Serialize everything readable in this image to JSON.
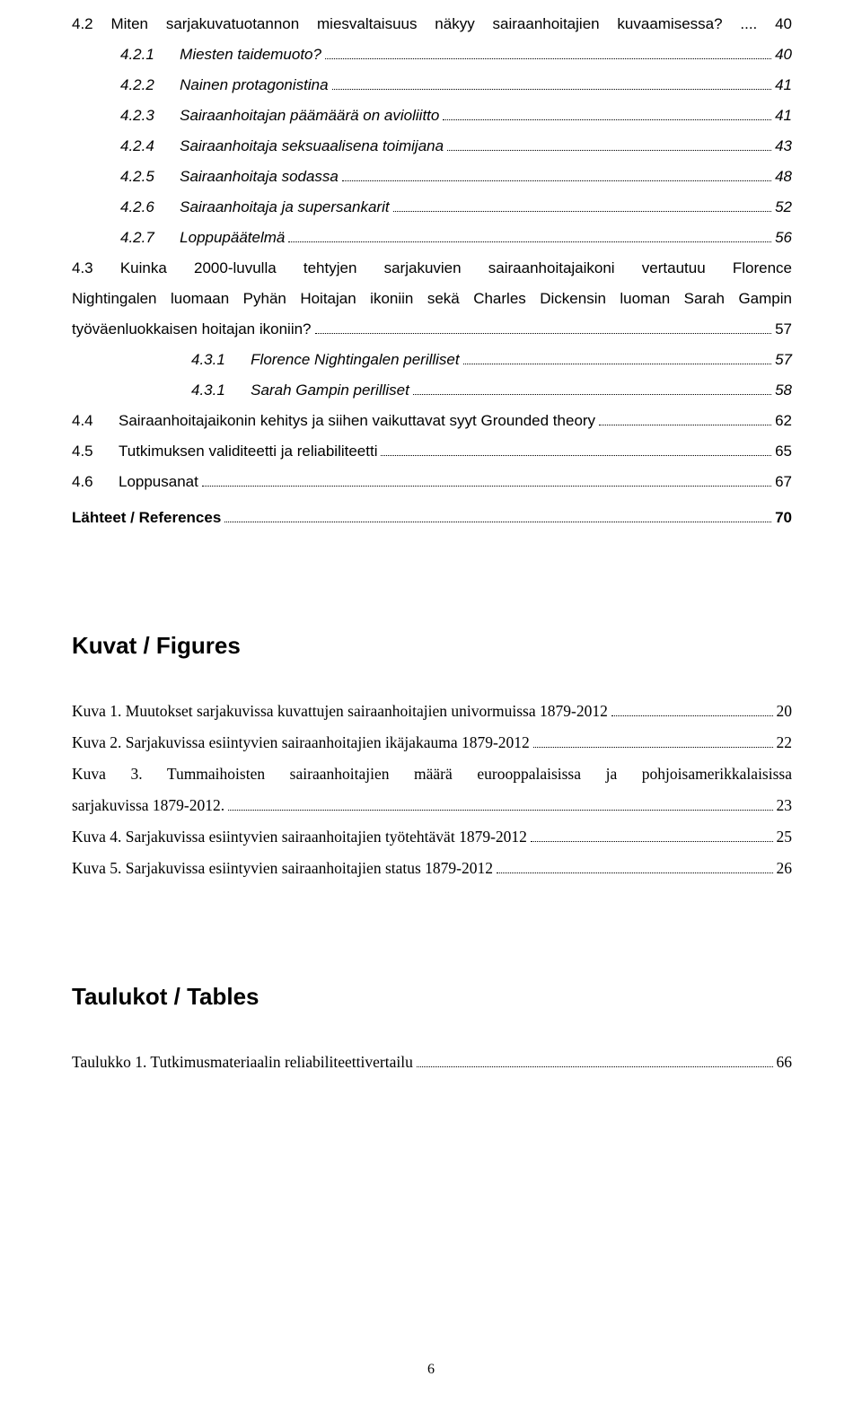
{
  "toc": [
    {
      "type": "wrap",
      "indent": 0,
      "style": "normal",
      "full": "4.2      Miten sarjakuvatuotannon miesvaltaisuus näkyy sairaanhoitajien kuvaamisessa? .... 40"
    },
    {
      "type": "line",
      "indent": 1,
      "style": "italic",
      "num": "4.2.1",
      "label": "Miesten taidemuoto?",
      "page": "40"
    },
    {
      "type": "line",
      "indent": 1,
      "style": "italic",
      "num": "4.2.2",
      "label": "Nainen protagonistina",
      "page": "41"
    },
    {
      "type": "line",
      "indent": 1,
      "style": "italic",
      "num": "4.2.3",
      "label": "Sairaanhoitajan päämäärä on avioliitto",
      "page": "41"
    },
    {
      "type": "line",
      "indent": 1,
      "style": "italic",
      "num": "4.2.4",
      "label": "Sairaanhoitaja seksuaalisena toimijana",
      "page": "43"
    },
    {
      "type": "line",
      "indent": 1,
      "style": "italic",
      "num": "4.2.5",
      "label": "Sairaanhoitaja sodassa",
      "page": "48"
    },
    {
      "type": "line",
      "indent": 1,
      "style": "italic",
      "num": "4.2.6",
      "label": "Sairaanhoitaja ja supersankarit",
      "page": "52"
    },
    {
      "type": "line",
      "indent": 1,
      "style": "italic",
      "num": "4.2.7",
      "label": "Loppupäätelmä",
      "page": "56"
    },
    {
      "type": "multiwrap",
      "indent": 0,
      "style": "normal",
      "lines": [
        "4.3      Kuinka  2000-luvulla  tehtyjen  sarjakuvien  sairaanhoitajaikoni  vertautuu  Florence",
        "Nightingalen luomaan Pyhän Hoitajan ikoniin sekä Charles Dickensin luoman Sarah Gampin"
      ],
      "last_label": "työväenluokkaisen hoitajan ikoniin?",
      "page": "57"
    },
    {
      "type": "line",
      "indent": 2,
      "style": "italic",
      "num": "4.3.1",
      "label": "Florence Nightingalen perilliset",
      "page": "57"
    },
    {
      "type": "line",
      "indent": 2,
      "style": "italic",
      "num": "4.3.1",
      "label": "Sarah Gampin perilliset",
      "page": "58"
    },
    {
      "type": "line",
      "indent": 0,
      "style": "normal",
      "num": "4.4",
      "label": "Sairaanhoitajaikonin kehitys ja siihen vaikuttavat syyt Grounded theory",
      "page": "62"
    },
    {
      "type": "line",
      "indent": 0,
      "style": "normal",
      "num": "4.5",
      "label": "Tutkimuksen validiteetti ja reliabiliteetti",
      "page": "65"
    },
    {
      "type": "line",
      "indent": 0,
      "style": "normal",
      "num": "4.6",
      "label": "Loppusanat",
      "page": "67"
    },
    {
      "type": "line",
      "indent": -1,
      "style": "bold",
      "num": "",
      "label": "Lähteet / References",
      "page": "70"
    }
  ],
  "figures_heading": "Kuvat / Figures",
  "figures": [
    {
      "type": "line",
      "label": "Kuva 1. Muutokset sarjakuvissa kuvattujen sairaanhoitajien univormuissa 1879-2012",
      "page": "20"
    },
    {
      "type": "line",
      "label": "Kuva 2. Sarjakuvissa esiintyvien sairaanhoitajien ikäjakauma 1879-2012",
      "page": "22"
    },
    {
      "type": "multiwrap",
      "lines": [
        "Kuva  3.  Tummaihoisten  sairaanhoitajien  määrä  eurooppalaisissa  ja  pohjoisamerikkalaisissa"
      ],
      "last_label": "sarjakuvissa 1879-2012.",
      "page": "23"
    },
    {
      "type": "line",
      "label": "Kuva 4. Sarjakuvissa esiintyvien sairaanhoitajien työtehtävät 1879-2012",
      "page": "25"
    },
    {
      "type": "line",
      "label": "Kuva 5. Sarjakuvissa esiintyvien sairaanhoitajien status 1879-2012",
      "page": "26"
    }
  ],
  "tables_heading": "Taulukot / Tables",
  "tables": [
    {
      "type": "line",
      "label": "Taulukko 1. Tutkimusmateriaalin reliabiliteettivertailu",
      "page": "66"
    }
  ],
  "page_number": "6"
}
